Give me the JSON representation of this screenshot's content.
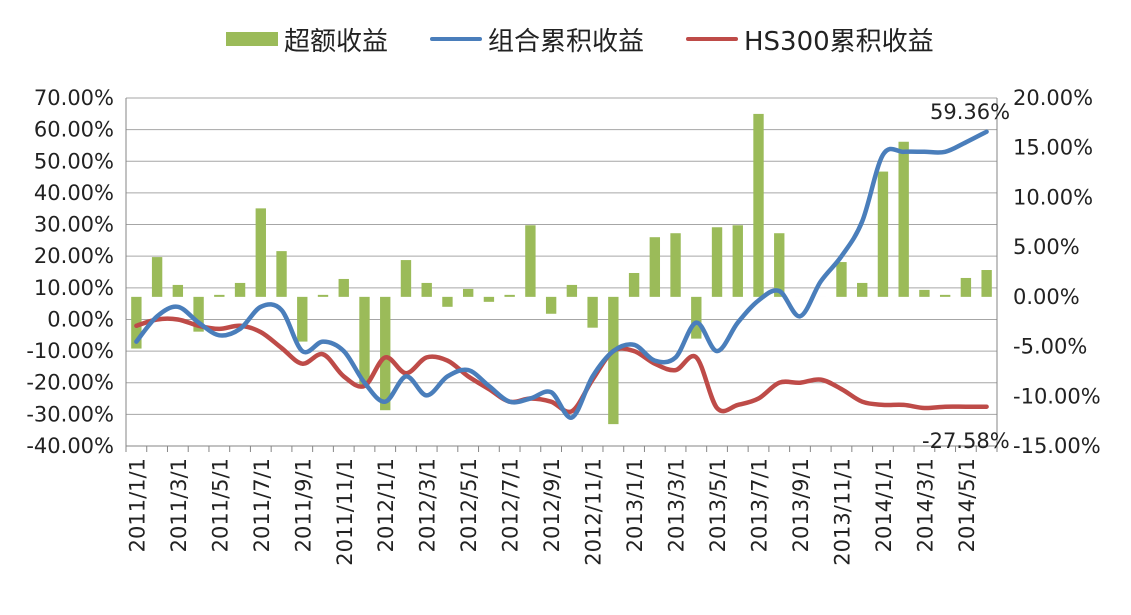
{
  "chart_data": {
    "type": "bar+line",
    "legend": [
      {
        "name": "超额收益",
        "kind": "bar",
        "color": "#9BBB59"
      },
      {
        "name": "组合累积收益",
        "kind": "line",
        "color": "#4A7EBB"
      },
      {
        "name": "HS300累积收益",
        "kind": "line",
        "color": "#BE4B48"
      }
    ],
    "legend_position": "top",
    "x_tick_labels": [
      "2011/1/1",
      "2011/3/1",
      "2011/5/1",
      "2011/7/1",
      "2011/9/1",
      "2011/11/1",
      "2012/1/1",
      "2012/3/1",
      "2012/5/1",
      "2012/7/1",
      "2012/9/1",
      "2012/11/1",
      "2013/1/1",
      "2013/3/1",
      "2013/5/1",
      "2013/7/1",
      "2013/9/1",
      "2013/11/1",
      "2014/1/1",
      "2014/3/1",
      "2014/5/1"
    ],
    "months": [
      "2011/1",
      "2011/2",
      "2011/3",
      "2011/4",
      "2011/5",
      "2011/6",
      "2011/7",
      "2011/8",
      "2011/9",
      "2011/10",
      "2011/11",
      "2011/12",
      "2012/1",
      "2012/2",
      "2012/3",
      "2012/4",
      "2012/5",
      "2012/6",
      "2012/7",
      "2012/8",
      "2012/9",
      "2012/10",
      "2012/11",
      "2012/12",
      "2013/1",
      "2013/2",
      "2013/3",
      "2013/4",
      "2013/5",
      "2013/6",
      "2013/7",
      "2013/8",
      "2013/9",
      "2013/10",
      "2013/11",
      "2013/12",
      "2014/1",
      "2014/2",
      "2014/3",
      "2014/4",
      "2014/5",
      "2014/6"
    ],
    "left_axis": {
      "min": -40,
      "max": 70,
      "step": 10,
      "tick_labels": [
        "70.00%",
        "60.00%",
        "50.00%",
        "40.00%",
        "30.00%",
        "20.00%",
        "10.00%",
        "0.00%",
        "-10.00%",
        "-20.00%",
        "-30.00%",
        "-40.00%"
      ]
    },
    "right_axis": {
      "min": -15,
      "max": 20,
      "step": 5,
      "tick_labels": [
        "20.00%",
        "15.00%",
        "10.00%",
        "5.00%",
        "0.00%",
        "-5.00%",
        "-10.00%",
        "-15.00%"
      ]
    },
    "grid": "horizontal",
    "series": [
      {
        "name": "超额收益",
        "axis": "right",
        "type": "bar",
        "values": [
          -5.2,
          4.0,
          1.2,
          -3.5,
          0.2,
          1.4,
          8.9,
          4.6,
          -4.5,
          0.2,
          1.8,
          -8.8,
          -11.4,
          3.7,
          1.4,
          -1.0,
          0.8,
          -0.5,
          0.2,
          7.2,
          -1.7,
          1.2,
          -3.1,
          -12.8,
          2.4,
          6.0,
          6.4,
          -4.2,
          7.0,
          7.2,
          18.4,
          6.4,
          0,
          0,
          3.5,
          1.4,
          12.6,
          15.6,
          0.7,
          0.2,
          1.9,
          2.7
        ]
      },
      {
        "name": "组合累积收益",
        "axis": "left",
        "type": "line",
        "values": [
          -7,
          1,
          4,
          -1,
          -5,
          -3,
          4,
          3,
          -10,
          -7,
          -10,
          -20,
          -26,
          -18,
          -24,
          -18,
          -16,
          -21,
          -26,
          -25,
          -23,
          -31,
          -18,
          -10,
          -8,
          -13,
          -12,
          -1,
          -10,
          -1,
          6,
          9,
          1,
          12,
          20,
          31,
          52,
          53,
          53,
          53,
          56,
          59.36
        ]
      },
      {
        "name": "HS300累积收益",
        "axis": "left",
        "type": "line",
        "values": [
          -2,
          0,
          0,
          -2,
          -3,
          -2,
          -4,
          -9,
          -14,
          -11,
          -18,
          -21,
          -12,
          -17,
          -12,
          -13,
          -18,
          -22,
          -26,
          -25,
          -26,
          -29,
          -19,
          -10,
          -10,
          -14,
          -16,
          -12,
          -28,
          -27,
          -25,
          -20,
          -20,
          -19,
          -22,
          -26,
          -27,
          -27,
          -28,
          -27.58,
          -27.58,
          -27.58
        ]
      }
    ],
    "annotations": [
      "59.36%",
      "-27.58%"
    ]
  }
}
